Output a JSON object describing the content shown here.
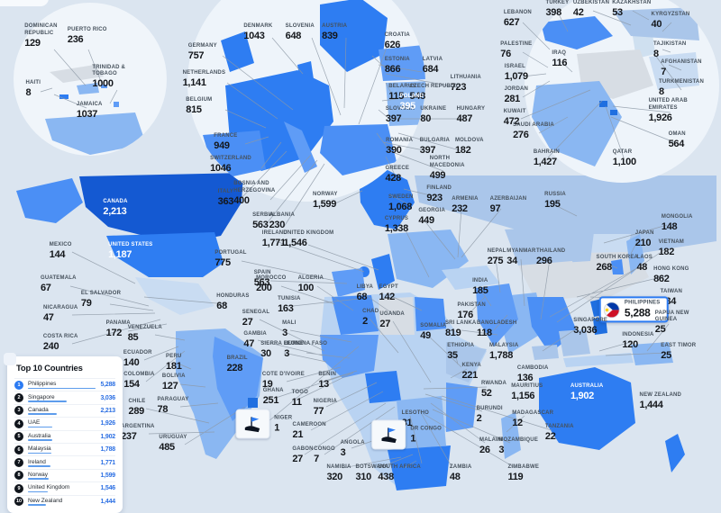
{
  "legend": {
    "title": "Top 10 Countries",
    "rows": [
      {
        "rank": "1",
        "name": "Philippines",
        "value": "5,288"
      },
      {
        "rank": "2",
        "name": "Singapore",
        "value": "3,036"
      },
      {
        "rank": "3",
        "name": "Canada",
        "value": "2,213"
      },
      {
        "rank": "4",
        "name": "UAE",
        "value": "1,926"
      },
      {
        "rank": "5",
        "name": "Australia",
        "value": "1,902"
      },
      {
        "rank": "6",
        "name": "Malaysia",
        "value": "1,788"
      },
      {
        "rank": "7",
        "name": "Ireland",
        "value": "1,771"
      },
      {
        "rank": "8",
        "name": "Norway",
        "value": "1,599"
      },
      {
        "rank": "9",
        "name": "United Kingdom",
        "value": "1,546"
      },
      {
        "rank": "10",
        "name": "New Zealand",
        "value": "1,444"
      }
    ]
  },
  "chart_data": {
    "type": "map",
    "title": "Top 10 Countries",
    "legend_position": "bottom-left",
    "regions": [
      {
        "name": "Dominican Republic",
        "value": "129",
        "x": 6.9,
        "y": 7.1
      },
      {
        "name": "Puerto Rico",
        "value": "236",
        "x": 12.1,
        "y": 7.1
      },
      {
        "name": "Trinidad & Tobago",
        "value": "1000",
        "x": 16.3,
        "y": 15.2
      },
      {
        "name": "Haiti",
        "value": "8",
        "x": 4.6,
        "y": 17.5
      },
      {
        "name": "Jamaica",
        "value": "1037",
        "x": 12.4,
        "y": 21.8
      },
      {
        "name": "Denmark",
        "value": "1043",
        "x": 35.8,
        "y": 6.4
      },
      {
        "name": "Slovenia",
        "value": "648",
        "x": 41.6,
        "y": 6.4
      },
      {
        "name": "Austria",
        "value": "839",
        "x": 46.4,
        "y": 6.4
      },
      {
        "name": "Croatia",
        "value": "626",
        "x": 55.1,
        "y": 8.1
      },
      {
        "name": "Germany",
        "value": "757",
        "x": 28.1,
        "y": 10.3
      },
      {
        "name": "Netherlands",
        "value": "1,141",
        "x": 28.3,
        "y": 15.6
      },
      {
        "name": "Belgium",
        "value": "815",
        "x": 27.6,
        "y": 20.9
      },
      {
        "name": "Estonia",
        "value": "866",
        "x": 55.1,
        "y": 12.9
      },
      {
        "name": "Latvia",
        "value": "684",
        "x": 60.0,
        "y": 12.9
      },
      {
        "name": "Lithuania",
        "value": "723",
        "x": 64.6,
        "y": 16.5
      },
      {
        "name": "Belarus",
        "value": "115",
        "x": 55.8,
        "y": 18.2
      },
      {
        "name": "Czech Republic",
        "value": "548",
        "x": 60.3,
        "y": 18.2
      },
      {
        "name": "Slovakia",
        "value": "397",
        "x": 55.5,
        "y": 22.7
      },
      {
        "name": "Ukraine",
        "value": "80",
        "x": 60.1,
        "y": 22.7
      },
      {
        "name": "Hungary",
        "value": "487",
        "x": 65.3,
        "y": 22.7
      },
      {
        "name": "Poland",
        "value": "395",
        "x": 57.1,
        "y": 20.2,
        "style": "onmap"
      },
      {
        "name": "Romania",
        "value": "390",
        "x": 55.4,
        "y": 28.8
      },
      {
        "name": "Bulgaria",
        "value": "397",
        "x": 60.3,
        "y": 28.8
      },
      {
        "name": "Moldova",
        "value": "182",
        "x": 65.1,
        "y": 28.8
      },
      {
        "name": "France",
        "value": "949",
        "x": 31.3,
        "y": 28.0
      },
      {
        "name": "Switzerland",
        "value": "1046",
        "x": 32.0,
        "y": 32.4
      },
      {
        "name": "Italy",
        "value": "363",
        "x": 31.3,
        "y": 38.9
      },
      {
        "name": "Bosnia and Herzegovina",
        "value": "400",
        "x": 35.9,
        "y": 38.1
      },
      {
        "name": "Serbia",
        "value": "563",
        "x": 36.5,
        "y": 43.5
      },
      {
        "name": "Albania",
        "value": "230",
        "x": 39.1,
        "y": 43.5
      },
      {
        "name": "Norway",
        "value": "1,599",
        "x": 45.1,
        "y": 39.5
      },
      {
        "name": "Greece",
        "value": "428",
        "x": 55.1,
        "y": 34.3
      },
      {
        "name": "North Macedonia",
        "value": "499",
        "x": 63.1,
        "y": 33.1
      },
      {
        "name": "Finland",
        "value": "923",
        "x": 60.9,
        "y": 38.2
      },
      {
        "name": "Sweden",
        "value": "1,068",
        "x": 55.6,
        "y": 40.0
      },
      {
        "name": "Cyprus",
        "value": "1,338",
        "x": 55.0,
        "y": 44.2
      },
      {
        "name": "Georgia",
        "value": "449",
        "x": 59.9,
        "y": 42.7
      },
      {
        "name": "Armenia",
        "value": "232",
        "x": 64.5,
        "y": 40.4
      },
      {
        "name": "Azerbaijan",
        "value": "97",
        "x": 70.5,
        "y": 40.4
      },
      {
        "name": "Russia",
        "value": "195",
        "x": 77.0,
        "y": 39.5
      },
      {
        "name": "Ireland",
        "value": "1,771",
        "x": 38.1,
        "y": 47.1
      },
      {
        "name": "United Kingdom",
        "value": "1,546",
        "x": 42.8,
        "y": 47.1
      },
      {
        "name": "Portugal",
        "value": "775",
        "x": 32.0,
        "y": 51.0
      },
      {
        "name": "Spain",
        "value": "563",
        "x": 36.4,
        "y": 54.9
      },
      {
        "name": "Lebanon",
        "value": "627",
        "x": 71.8,
        "y": 3.7
      },
      {
        "name": "Turkey",
        "value": "398",
        "x": 77.3,
        "y": 1.8
      },
      {
        "name": "Uzbekistan",
        "value": "42",
        "x": 82.0,
        "y": 1.8
      },
      {
        "name": "Kazakhstan",
        "value": "53",
        "x": 87.6,
        "y": 1.8
      },
      {
        "name": "Kyrgyzstan",
        "value": "40",
        "x": 93.0,
        "y": 4.1
      },
      {
        "name": "Palestine",
        "value": "76",
        "x": 71.6,
        "y": 9.9
      },
      {
        "name": "Iraq",
        "value": "116",
        "x": 77.6,
        "y": 11.7
      },
      {
        "name": "Israel",
        "value": "1,079",
        "x": 71.6,
        "y": 14.3
      },
      {
        "name": "Tajikistan",
        "value": "8",
        "x": 92.9,
        "y": 9.9
      },
      {
        "name": "Afghanistan",
        "value": "7",
        "x": 94.5,
        "y": 13.5
      },
      {
        "name": "Jordan",
        "value": "281",
        "x": 71.6,
        "y": 18.8
      },
      {
        "name": "Turkmenistan",
        "value": "8",
        "x": 94.5,
        "y": 17.3
      },
      {
        "name": "Kuwait",
        "value": "472",
        "x": 71.4,
        "y": 23.2
      },
      {
        "name": "Saudi Arabia",
        "value": "276",
        "x": 74.0,
        "y": 25.8
      },
      {
        "name": "United Arab Emirates",
        "value": "1,926",
        "x": 93.3,
        "y": 21.8
      },
      {
        "name": "Oman",
        "value": "564",
        "x": 93.9,
        "y": 27.6
      },
      {
        "name": "Bahrain",
        "value": "1,427",
        "x": 75.8,
        "y": 31.2
      },
      {
        "name": "Qatar",
        "value": "1,100",
        "x": 86.6,
        "y": 31.2
      },
      {
        "name": "Canada",
        "value": "2,213",
        "x": 16.0,
        "y": 40.9,
        "style": "onmap"
      },
      {
        "name": "United States",
        "value": "1,187",
        "x": 18.1,
        "y": 49.4,
        "style": "onmap"
      },
      {
        "name": "Mexico",
        "value": "144",
        "x": 8.4,
        "y": 49.4
      },
      {
        "name": "Guatemala",
        "value": "67",
        "x": 8.1,
        "y": 55.9
      },
      {
        "name": "El Salvador",
        "value": "79",
        "x": 14.0,
        "y": 58.9
      },
      {
        "name": "Nicaragua",
        "value": "47",
        "x": 8.4,
        "y": 61.8
      },
      {
        "name": "Costa Rica",
        "value": "240",
        "x": 8.4,
        "y": 67.4
      },
      {
        "name": "Panama",
        "value": "172",
        "x": 16.4,
        "y": 64.8
      },
      {
        "name": "Venezuela",
        "value": "85",
        "x": 20.1,
        "y": 65.7
      },
      {
        "name": "Honduras",
        "value": "68",
        "x": 32.3,
        "y": 59.5
      },
      {
        "name": "Ecuador",
        "value": "140",
        "x": 19.1,
        "y": 70.6
      },
      {
        "name": "Peru",
        "value": "181",
        "x": 24.1,
        "y": 71.3
      },
      {
        "name": "Colombia",
        "value": "154",
        "x": 19.3,
        "y": 74.9
      },
      {
        "name": "Bolivia",
        "value": "127",
        "x": 24.1,
        "y": 75.2
      },
      {
        "name": "Chile",
        "value": "289",
        "x": 19.0,
        "y": 80.2
      },
      {
        "name": "Paraguay",
        "value": "78",
        "x": 24.0,
        "y": 79.8
      },
      {
        "name": "Argentina",
        "value": "237",
        "x": 19.1,
        "y": 85.1
      },
      {
        "name": "Uruguay",
        "value": "485",
        "x": 24.0,
        "y": 87.3
      },
      {
        "name": "Brazil",
        "value": "228",
        "x": 32.9,
        "y": 71.7
      },
      {
        "name": "Morocco",
        "value": "200",
        "x": 37.6,
        "y": 55.9
      },
      {
        "name": "Tunisia",
        "value": "163",
        "x": 40.1,
        "y": 60.0
      },
      {
        "name": "Algeria",
        "value": "100",
        "x": 43.1,
        "y": 55.9
      },
      {
        "name": "Libya",
        "value": "68",
        "x": 50.6,
        "y": 57.7
      },
      {
        "name": "Egypt",
        "value": "142",
        "x": 53.9,
        "y": 57.7
      },
      {
        "name": "Senegal",
        "value": "27",
        "x": 35.5,
        "y": 62.7
      },
      {
        "name": "Gambia",
        "value": "47",
        "x": 35.4,
        "y": 66.9
      },
      {
        "name": "Mali",
        "value": "3",
        "x": 40.1,
        "y": 64.8
      },
      {
        "name": "Chad",
        "value": "2",
        "x": 51.4,
        "y": 62.5
      },
      {
        "name": "Uganda",
        "value": "27",
        "x": 54.4,
        "y": 63.0
      },
      {
        "name": "Sierra Leone",
        "value": "30",
        "x": 39.1,
        "y": 68.8
      },
      {
        "name": "Burkina Faso",
        "value": "3",
        "x": 42.4,
        "y": 68.8
      },
      {
        "name": "Cote D'Ivoire",
        "value": "19",
        "x": 39.3,
        "y": 74.9
      },
      {
        "name": "Benin",
        "value": "13",
        "x": 45.4,
        "y": 74.9
      },
      {
        "name": "Ghana",
        "value": "251",
        "x": 37.9,
        "y": 78.1
      },
      {
        "name": "Togo",
        "value": "11",
        "x": 41.6,
        "y": 78.4
      },
      {
        "name": "Niger",
        "value": "1",
        "x": 36.6,
        "y": 83.4,
        "style": "flag"
      },
      {
        "name": "Nigeria",
        "value": "77",
        "x": 45.1,
        "y": 80.2
      },
      {
        "name": "Cameroon",
        "value": "21",
        "x": 42.9,
        "y": 84.8
      },
      {
        "name": "Gabon",
        "value": "27",
        "x": 42.0,
        "y": 89.6
      },
      {
        "name": "Congo",
        "value": "7",
        "x": 45.0,
        "y": 89.6
      },
      {
        "name": "Angola",
        "value": "3",
        "x": 48.9,
        "y": 88.3
      },
      {
        "name": "Namibia",
        "value": "320",
        "x": 47.0,
        "y": 93.1
      },
      {
        "name": "Botswana",
        "value": "310",
        "x": 51.6,
        "y": 93.1
      },
      {
        "name": "South Africa",
        "value": "438",
        "x": 55.4,
        "y": 93.1
      },
      {
        "name": "DR Congo",
        "value": "1",
        "x": 56.4,
        "y": 85.5,
        "style": "flag"
      },
      {
        "name": "Lesotho",
        "value": "81",
        "x": 57.6,
        "y": 82.5
      },
      {
        "name": "Somalia",
        "value": "49",
        "x": 60.1,
        "y": 65.3
      },
      {
        "name": "Ethiopia",
        "value": "35",
        "x": 63.9,
        "y": 69.2
      },
      {
        "name": "Kenya",
        "value": "221",
        "x": 65.4,
        "y": 73.1
      },
      {
        "name": "Rwanda",
        "value": "52",
        "x": 68.5,
        "y": 76.6
      },
      {
        "name": "Burundi",
        "value": "2",
        "x": 67.9,
        "y": 81.6
      },
      {
        "name": "Malawi",
        "value": "26",
        "x": 68.1,
        "y": 87.8
      },
      {
        "name": "Zambia",
        "value": "48",
        "x": 63.9,
        "y": 93.1
      },
      {
        "name": "Zimbabwe",
        "value": "119",
        "x": 72.6,
        "y": 93.1
      },
      {
        "name": "Mozambique",
        "value": "3",
        "x": 71.9,
        "y": 87.8
      },
      {
        "name": "Madagascar",
        "value": "12",
        "x": 73.9,
        "y": 82.5
      },
      {
        "name": "Tanzania",
        "value": "22",
        "x": 77.6,
        "y": 85.1
      },
      {
        "name": "Mauritius",
        "value": "1,156",
        "x": 73.1,
        "y": 77.2
      },
      {
        "name": "Nepal",
        "value": "275",
        "x": 68.9,
        "y": 50.6
      },
      {
        "name": "Myanmar",
        "value": "34",
        "x": 72.3,
        "y": 50.6
      },
      {
        "name": "Thailand",
        "value": "296",
        "x": 76.4,
        "y": 50.6
      },
      {
        "name": "India",
        "value": "185",
        "x": 66.6,
        "y": 56.5
      },
      {
        "name": "Pakistan",
        "value": "176",
        "x": 65.4,
        "y": 61.2
      },
      {
        "name": "Sri Lanka",
        "value": "819",
        "x": 63.9,
        "y": 64.8
      },
      {
        "name": "Bangladesh",
        "value": "118",
        "x": 68.9,
        "y": 64.8
      },
      {
        "name": "Malaysia",
        "value": "1,788",
        "x": 69.9,
        "y": 69.2
      },
      {
        "name": "Cambodia",
        "value": "136",
        "x": 73.9,
        "y": 73.6
      },
      {
        "name": "Mongolia",
        "value": "148",
        "x": 93.9,
        "y": 43.9
      },
      {
        "name": "Japan",
        "value": "210",
        "x": 89.4,
        "y": 47.1
      },
      {
        "name": "Vietnam",
        "value": "182",
        "x": 93.1,
        "y": 48.8
      },
      {
        "name": "South Korea",
        "value": "268",
        "x": 85.6,
        "y": 51.9
      },
      {
        "name": "Laos",
        "value": "48",
        "x": 89.4,
        "y": 51.9
      },
      {
        "name": "Hong Kong",
        "value": "862",
        "x": 93.1,
        "y": 54.2
      },
      {
        "name": "Taiwan",
        "value": "434",
        "x": 93.1,
        "y": 58.6
      },
      {
        "name": "Philippines",
        "value": "5,288",
        "x": 87.9,
        "y": 60.9,
        "style": "box"
      },
      {
        "name": "Singapore",
        "value": "3,036",
        "x": 81.9,
        "y": 64.2
      },
      {
        "name": "Papua New Guinea",
        "value": "25",
        "x": 93.9,
        "y": 63.5
      },
      {
        "name": "Indonesia",
        "value": "120",
        "x": 88.5,
        "y": 67.1
      },
      {
        "name": "East Timor",
        "value": "25",
        "x": 94.1,
        "y": 69.2
      },
      {
        "name": "Australia",
        "value": "1,902",
        "x": 81.4,
        "y": 77.2,
        "style": "onmap"
      },
      {
        "name": "New Zealand",
        "value": "1,444",
        "x": 91.6,
        "y": 78.9
      }
    ]
  }
}
